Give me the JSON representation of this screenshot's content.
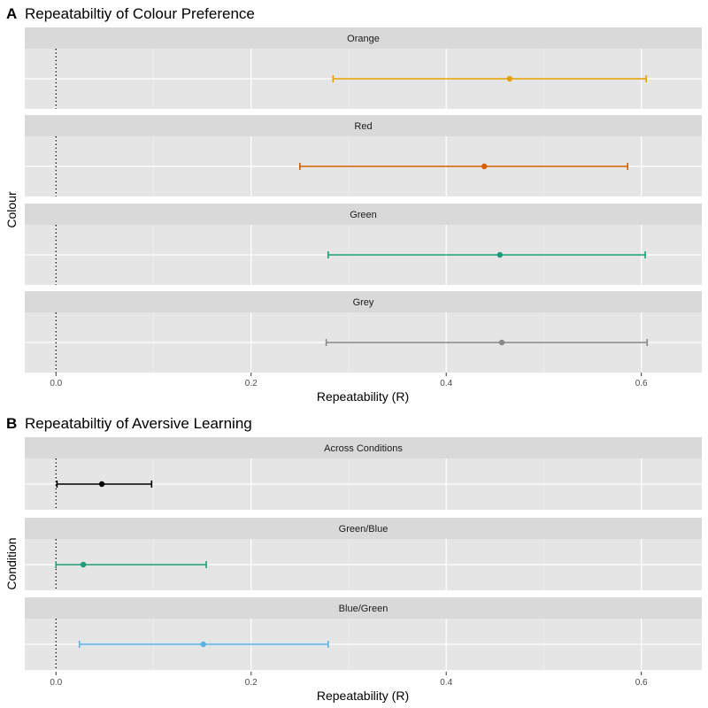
{
  "chart_data": [
    {
      "type": "errorbar",
      "panel_letter": "A",
      "title": "Repeatabiltiy of Colour Preference",
      "xlabel": "Repeatability (R)",
      "ylabel": "Colour",
      "xlim": [
        -0.032,
        0.662
      ],
      "xticks": [
        "0.0",
        "0.2",
        "0.4",
        "0.6"
      ],
      "xtick_values": [
        0.0,
        0.2,
        0.4,
        0.6
      ],
      "grid": true,
      "reference_line": 0,
      "facets": [
        {
          "name": "Orange",
          "estimate": 0.465,
          "lower": 0.284,
          "upper": 0.605,
          "color": "#E69F00"
        },
        {
          "name": "Red",
          "estimate": 0.439,
          "lower": 0.25,
          "upper": 0.586,
          "color": "#D55E00"
        },
        {
          "name": "Green",
          "estimate": 0.455,
          "lower": 0.279,
          "upper": 0.604,
          "color": "#1B9E77"
        },
        {
          "name": "Grey",
          "estimate": 0.457,
          "lower": 0.277,
          "upper": 0.606,
          "color": "#888888"
        }
      ]
    },
    {
      "type": "errorbar",
      "panel_letter": "B",
      "title": "Repeatabiltiy of Aversive Learning",
      "xlabel": "Repeatability (R)",
      "ylabel": "Condition",
      "xlim": [
        -0.032,
        0.662
      ],
      "xticks": [
        "0.0",
        "0.2",
        "0.4",
        "0.6"
      ],
      "xtick_values": [
        0.0,
        0.2,
        0.4,
        0.6
      ],
      "grid": true,
      "reference_line": 0,
      "facets": [
        {
          "name": "Across Conditions",
          "estimate": 0.047,
          "lower": 0.001,
          "upper": 0.098,
          "color": "#000000"
        },
        {
          "name": "Green/Blue",
          "estimate": 0.028,
          "lower": 0.0,
          "upper": 0.154,
          "color": "#1B9E77"
        },
        {
          "name": "Blue/Green",
          "estimate": 0.151,
          "lower": 0.024,
          "upper": 0.279,
          "color": "#56B4E9"
        }
      ]
    }
  ]
}
